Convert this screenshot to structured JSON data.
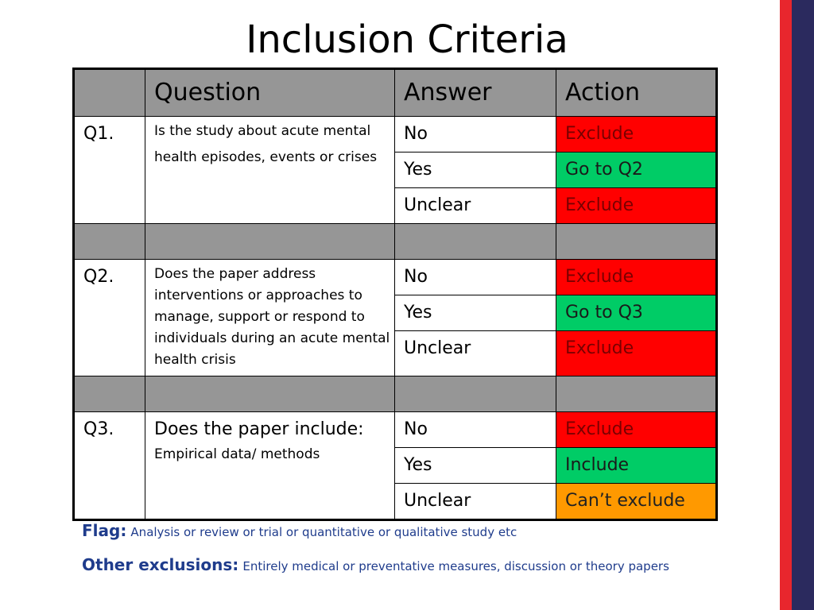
{
  "title": "Inclusion Criteria",
  "table": {
    "headers": [
      "",
      "Question",
      "Answer",
      "Action"
    ],
    "questions": [
      {
        "id": "Q1.",
        "text": "Is the study about acute mental health episodes, events or crises",
        "answers": [
          {
            "answer": "No",
            "action": "Exclude",
            "color": "#ff0000"
          },
          {
            "answer": "Yes",
            "action": "Go to Q2",
            "color": "#00cc66"
          },
          {
            "answer": "Unclear",
            "action": "Exclude",
            "color": "#ff0000"
          }
        ]
      },
      {
        "id": "Q2.",
        "text": "Does the paper address interventions or approaches to manage, support or respond to individuals during an acute mental health crisis",
        "answers": [
          {
            "answer": "No",
            "action": "Exclude",
            "color": "#ff0000"
          },
          {
            "answer": "Yes",
            "action": "Go to Q3",
            "color": "#00cc66"
          },
          {
            "answer": "Unclear",
            "action": "Exclude",
            "color": "#ff0000"
          }
        ]
      },
      {
        "id": "Q3.",
        "text": "Does the paper include:",
        "subtext": "Empirical data/ methods",
        "answers": [
          {
            "answer": "No",
            "action": "Exclude",
            "color": "#ff0000"
          },
          {
            "answer": "Yes",
            "action": "Include",
            "color": "#00cc66"
          },
          {
            "answer": "Unclear",
            "action": "Can’t exclude",
            "color": "#ff9900"
          }
        ]
      }
    ]
  },
  "notes": {
    "flag_label": "Flag:",
    "flag_text": "Analysis or review or trial or quantitative or qualitative study etc",
    "other_label": "Other exclusions:",
    "other_text": "Entirely medical or preventative measures, discussion or theory papers"
  },
  "colors": {
    "header_gray": "#969696",
    "exclude_red": "#ff0000",
    "go_green": "#00cc66",
    "cant_exclude_orange": "#ff9900",
    "note_blue": "#1f3c8c",
    "stripe_red": "#e8262d",
    "stripe_navy": "#2b2a5e"
  }
}
